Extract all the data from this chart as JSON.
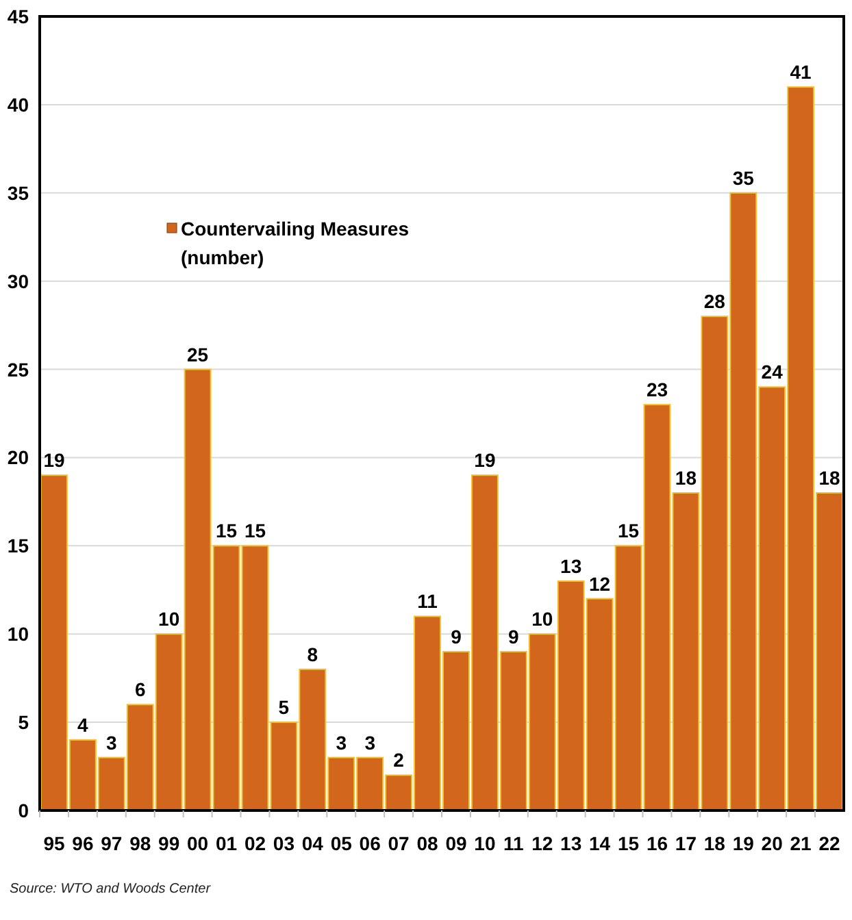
{
  "chart_data": {
    "type": "bar",
    "categories": [
      "95",
      "96",
      "97",
      "98",
      "99",
      "00",
      "01",
      "02",
      "03",
      "04",
      "05",
      "06",
      "07",
      "08",
      "09",
      "10",
      "11",
      "12",
      "13",
      "14",
      "15",
      "16",
      "17",
      "18",
      "19",
      "20",
      "21",
      "22"
    ],
    "series": [
      {
        "name": "Countervailing Measures (number)",
        "color": "#d2661c",
        "values": [
          19,
          4,
          3,
          6,
          10,
          25,
          15,
          15,
          5,
          8,
          3,
          3,
          2,
          11,
          9,
          19,
          9,
          10,
          13,
          12,
          15,
          23,
          18,
          28,
          35,
          24,
          41,
          18
        ]
      }
    ],
    "ylim": [
      0,
      45
    ],
    "yticks": [
      0,
      5,
      10,
      15,
      20,
      25,
      30,
      35,
      40,
      45
    ],
    "grid": "y",
    "legend": "top left",
    "data_labels": true,
    "annotations": [
      "Source: WTO and Woods Center"
    ]
  }
}
